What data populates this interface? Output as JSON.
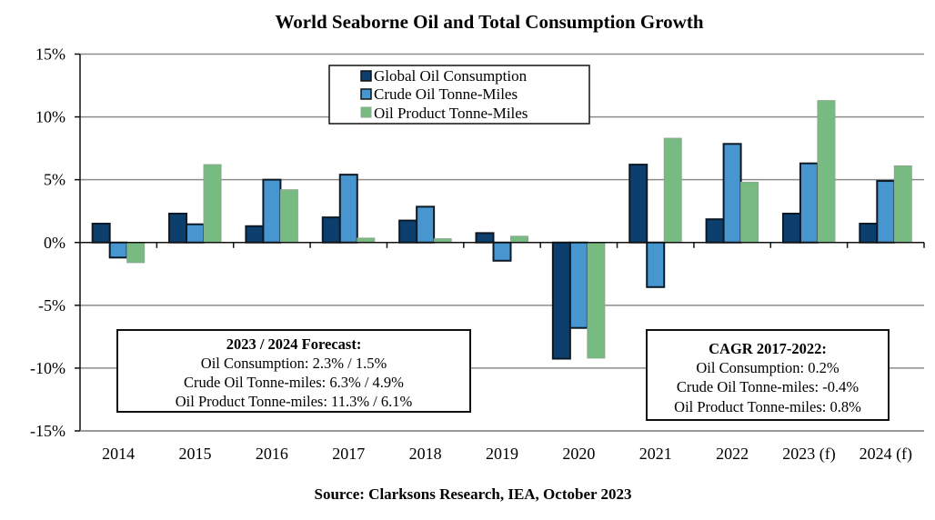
{
  "chart_data": {
    "type": "bar",
    "title": "World Seaborne Oil and Total Consumption Growth",
    "xlabel": "",
    "ylabel": "",
    "ylim": [
      -15,
      15
    ],
    "yticks": [
      15,
      10,
      5,
      0,
      -5,
      -10,
      -15
    ],
    "ytick_labels": [
      "15%",
      "10%",
      "5%",
      "0%",
      "-5%",
      "-10%",
      "-15%"
    ],
    "grid": true,
    "categories": [
      "2014",
      "2015",
      "2016",
      "2017",
      "2018",
      "2019",
      "2020",
      "2021",
      "2022",
      "2023 (f)",
      "2024 (f)"
    ],
    "series": [
      {
        "name": "Global Oil Consumption",
        "color": "#0d3f6e",
        "values": [
          1.5,
          2.3,
          1.3,
          2.0,
          1.75,
          0.75,
          -9.25,
          6.2,
          1.85,
          2.3,
          1.5
        ]
      },
      {
        "name": "Crude Oil Tonne-Miles",
        "color": "#4896d0",
        "values": [
          -1.2,
          1.45,
          5.0,
          5.4,
          2.85,
          -1.45,
          -6.8,
          -3.55,
          7.85,
          6.3,
          4.9
        ]
      },
      {
        "name": "Oil Product Tonne-Miles",
        "color": "#78bb82",
        "values": [
          -1.6,
          6.2,
          4.2,
          0.35,
          0.3,
          0.5,
          -9.2,
          8.3,
          4.8,
          11.3,
          6.1
        ]
      }
    ],
    "legend_position": "top-center",
    "annotations": {
      "forecast_box": {
        "heading": "2023 / 2024 Forecast:",
        "lines": [
          "Oil Consumption: 2.3% / 1.5%",
          "Crude Oil Tonne-miles: 6.3% / 4.9%",
          "Oil Product Tonne-miles: 11.3% / 6.1%"
        ]
      },
      "cagr_box": {
        "heading": "CAGR 2017-2022:",
        "lines": [
          "Oil Consumption: 0.2%",
          "Crude Oil Tonne-miles: -0.4%",
          "Oil Product Tonne-miles: 0.8%"
        ]
      }
    },
    "source": "Source: Clarksons Research, IEA, October 2023"
  }
}
